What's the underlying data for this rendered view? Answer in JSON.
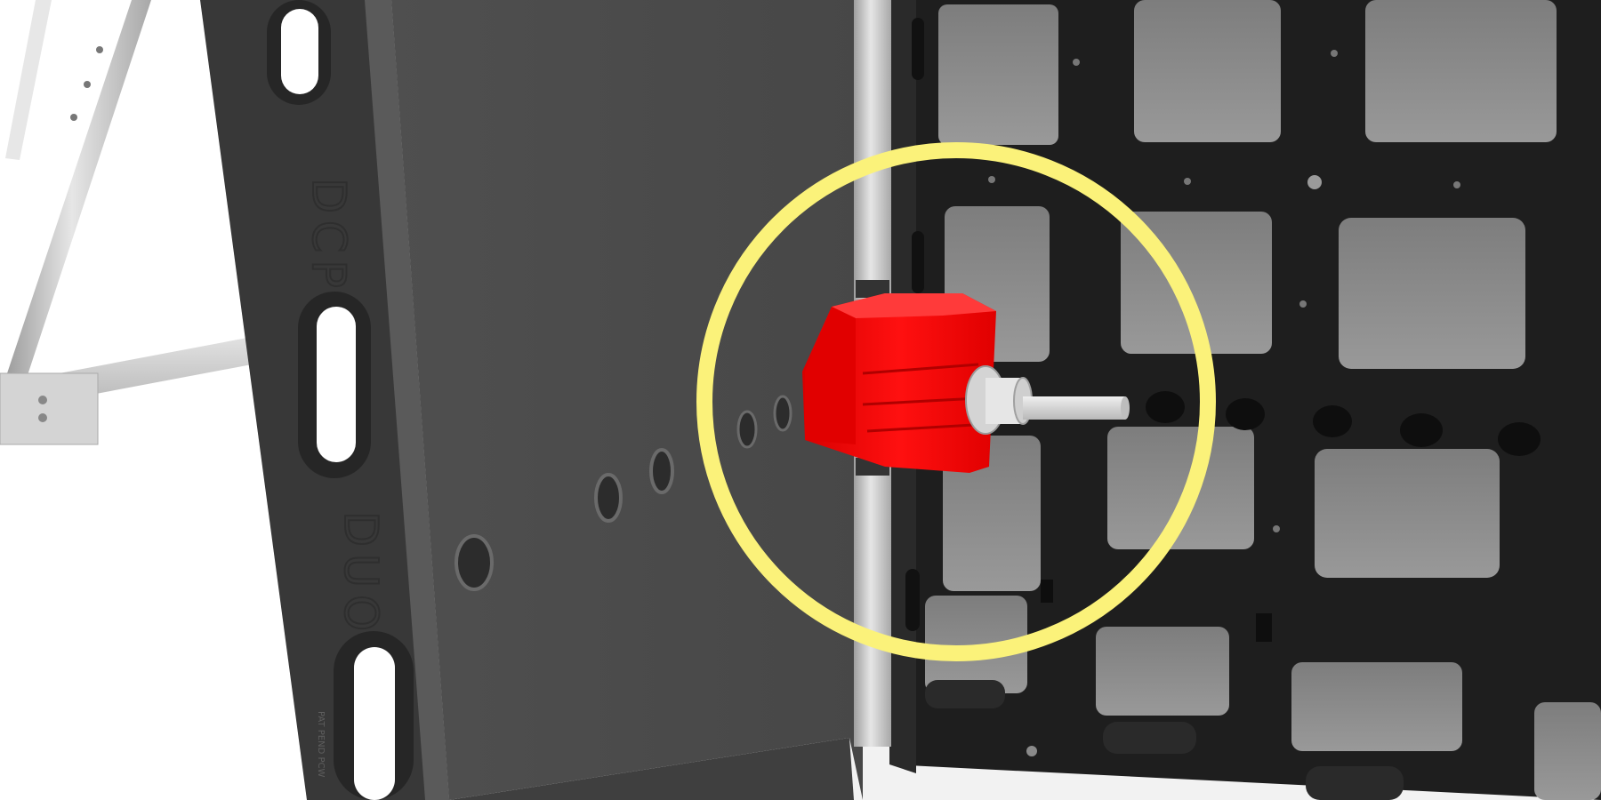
{
  "scene": {
    "description_visible_text": {
      "panel_embossed_top": "DCP",
      "panel_embossed_bottom": "DUO",
      "panel_small_print": "PAT PEND PCW"
    },
    "colors": {
      "background": "#ffffff",
      "panel_dark": "#3c3c3c",
      "panel_face": "#4a4a4a",
      "grid_frame": "#1c1c1c",
      "grid_window": "#8a8a8a",
      "highlight_circle": "#fbf27a",
      "clamp_red": "#ff0000",
      "pipe_light": "#d8d8d8"
    }
  }
}
